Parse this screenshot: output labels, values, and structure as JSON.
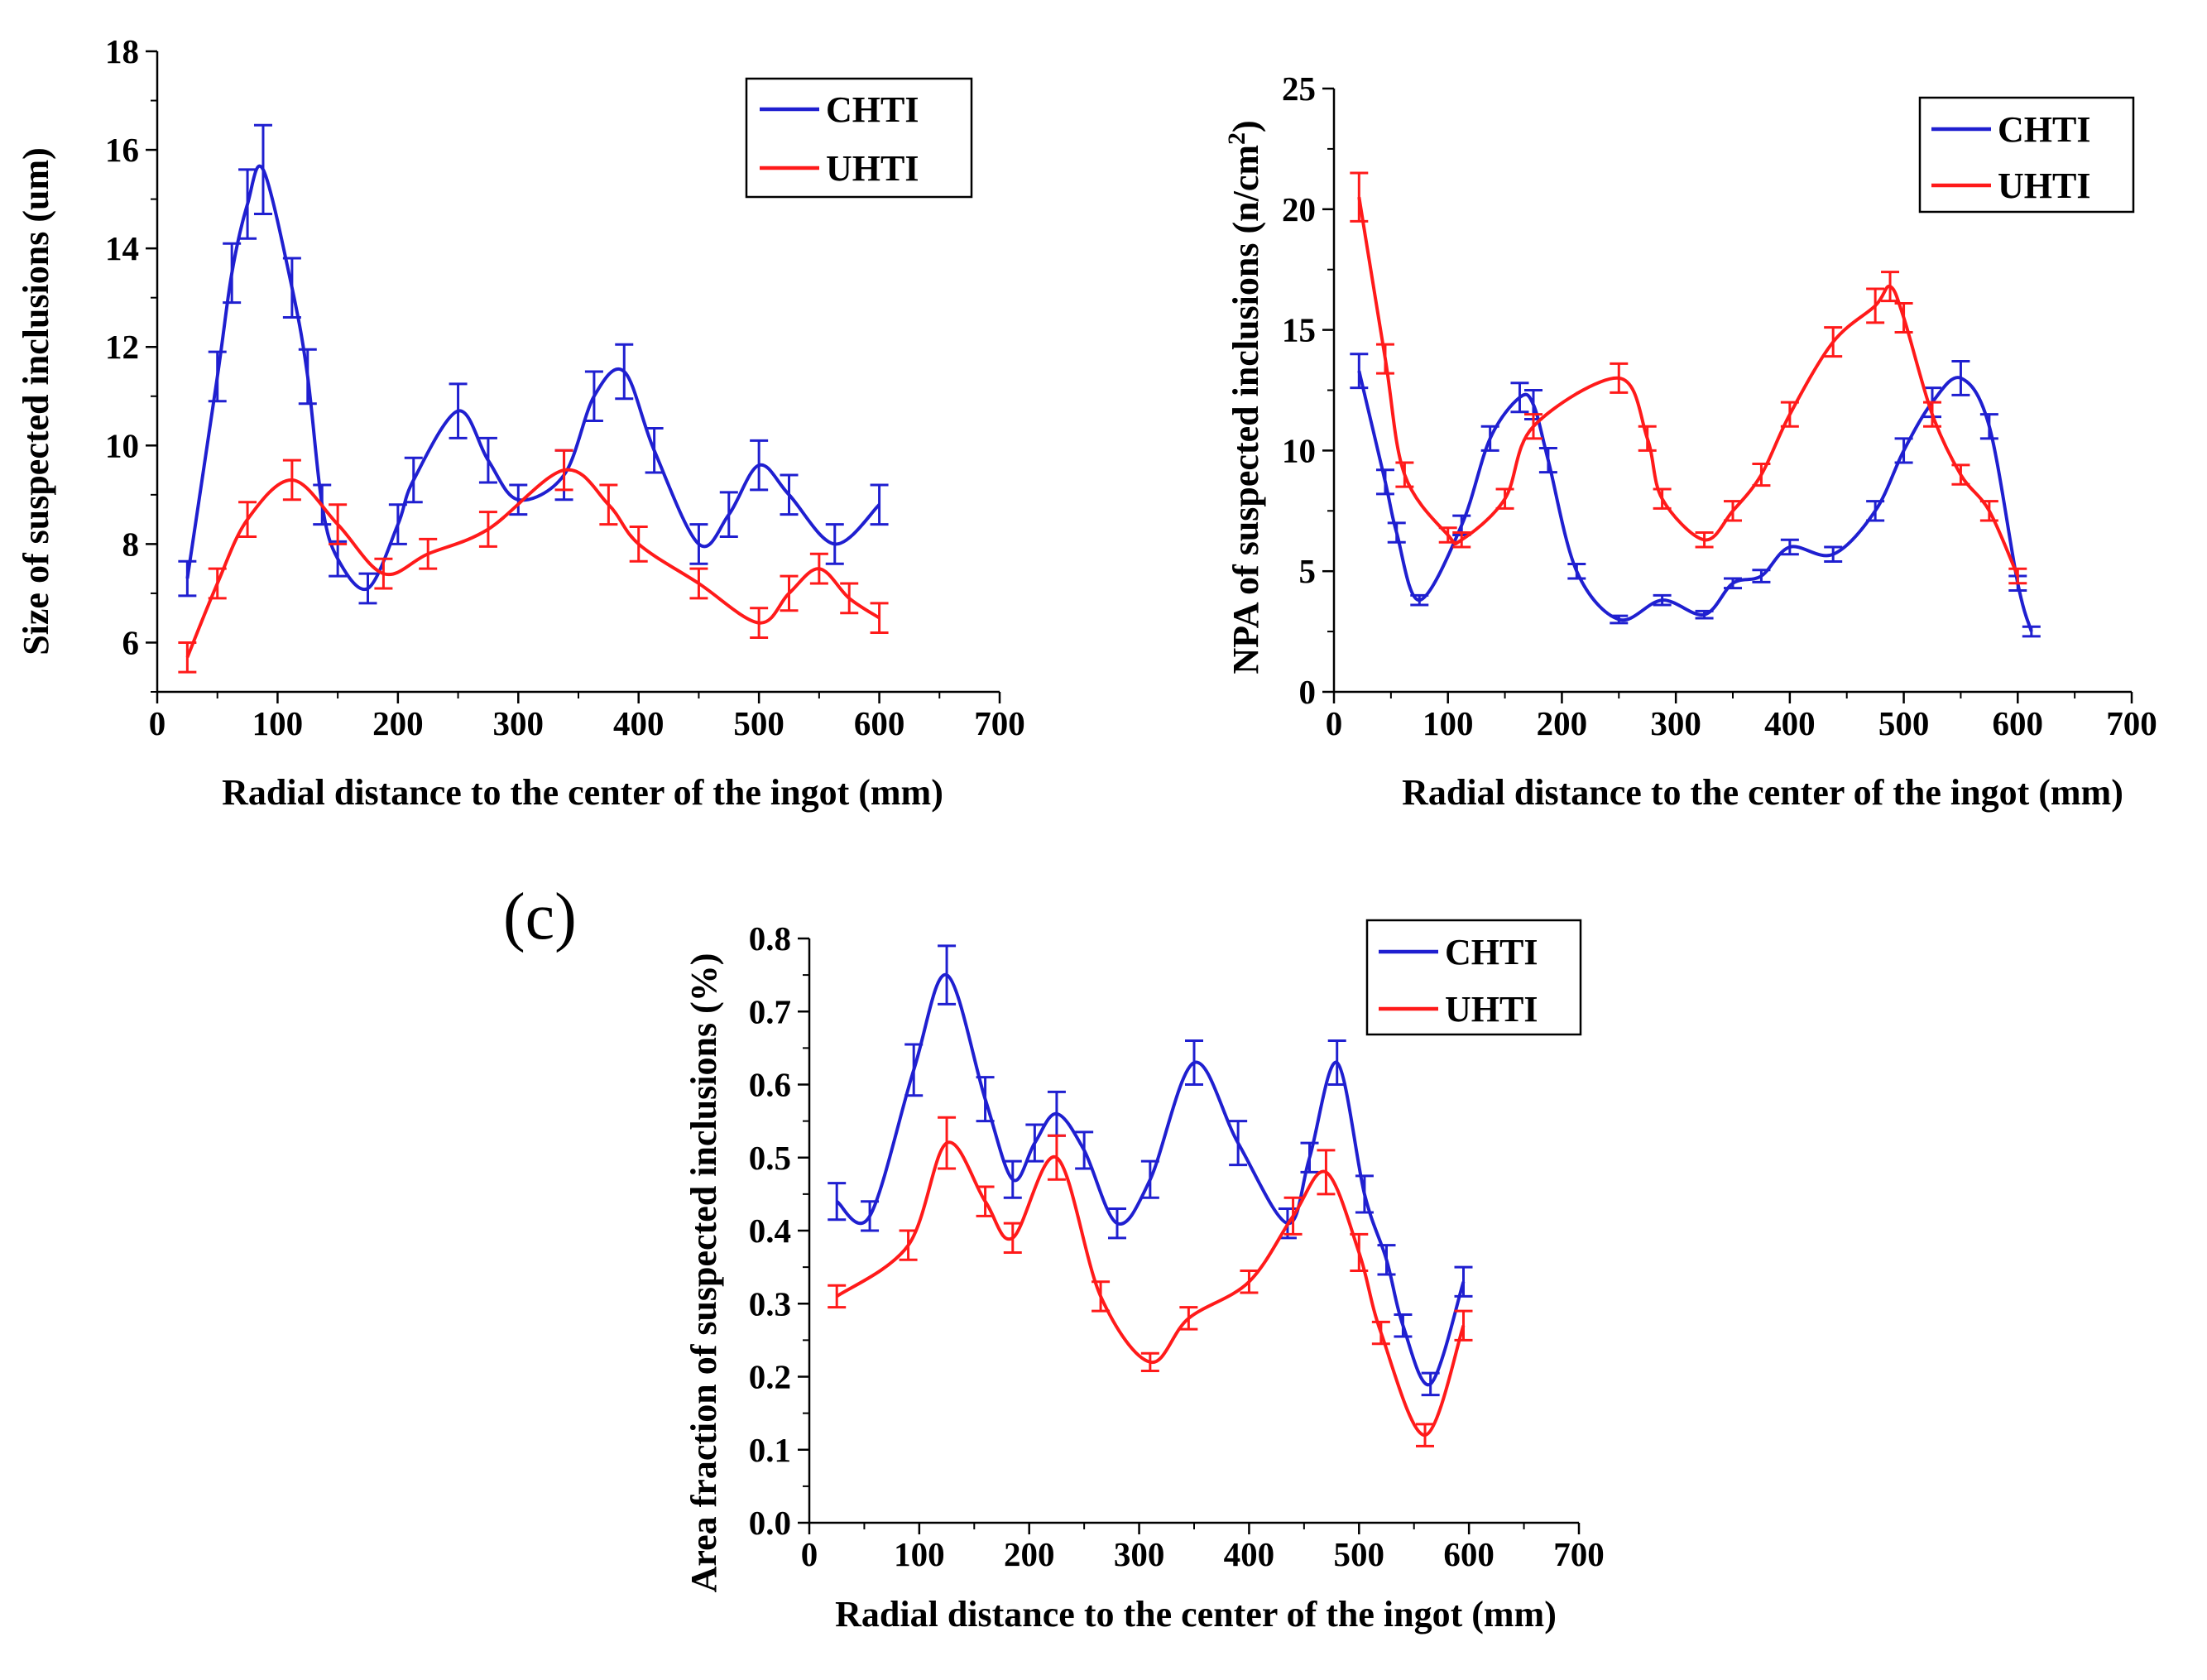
{
  "colors": {
    "CHTI": "#1f1fd0",
    "UHTI": "#ff1a1a",
    "axis": "#000000"
  },
  "panels": [
    {
      "id": "a",
      "label": "",
      "ylabel": "Size of  suspected inclusions (um)",
      "ylabel_superscript": "",
      "ylabel_suffix": "",
      "xlabel": "Radial distance to the center of the ingot (mm)",
      "xlim": [
        0,
        700
      ],
      "ylim": [
        5,
        18
      ],
      "xticks": [
        "0",
        "100",
        "200",
        "300",
        "400",
        "500",
        "600",
        "700"
      ],
      "xtick_values": [
        0,
        100,
        200,
        300,
        400,
        500,
        600,
        700
      ],
      "yticks": [
        "6",
        "8",
        "10",
        "12",
        "14",
        "16",
        "18"
      ],
      "ytick_values": [
        6,
        8,
        10,
        12,
        14,
        16,
        18
      ],
      "yminor": [
        5,
        7,
        9,
        11,
        13,
        15,
        17
      ],
      "legend": [
        "CHTI",
        "UHTI"
      ]
    },
    {
      "id": "b",
      "label": "",
      "ylabel": "NPA of suspected inclusions (n/cm",
      "ylabel_superscript": "2",
      "ylabel_suffix": ")",
      "xlabel": "Radial distance to the center of the ingot (mm)",
      "xlim": [
        0,
        700
      ],
      "ylim": [
        0,
        25
      ],
      "xticks": [
        "0",
        "100",
        "200",
        "300",
        "400",
        "500",
        "600",
        "700"
      ],
      "xtick_values": [
        0,
        100,
        200,
        300,
        400,
        500,
        600,
        700
      ],
      "yticks": [
        "0",
        "5",
        "10",
        "15",
        "20",
        "25"
      ],
      "ytick_values": [
        0,
        5,
        10,
        15,
        20,
        25
      ],
      "yminor": [
        2.5,
        7.5,
        12.5,
        17.5,
        22.5
      ],
      "legend": [
        "CHTI",
        "UHTI"
      ]
    },
    {
      "id": "c",
      "label": "(c)",
      "ylabel": "Area fraction of suspected inclusions (%)",
      "ylabel_superscript": "",
      "ylabel_suffix": "",
      "xlabel": "Radial distance to the center of the ingot (mm)",
      "xlim": [
        0,
        700
      ],
      "ylim": [
        0,
        0.8
      ],
      "xticks": [
        "0",
        "100",
        "200",
        "300",
        "400",
        "500",
        "600",
        "700"
      ],
      "xtick_values": [
        0,
        100,
        200,
        300,
        400,
        500,
        600,
        700
      ],
      "yticks": [
        "0.0",
        "0.1",
        "0.2",
        "0.3",
        "0.4",
        "0.5",
        "0.6",
        "0.7",
        "0.8"
      ],
      "ytick_values": [
        0,
        0.1,
        0.2,
        0.3,
        0.4,
        0.5,
        0.6,
        0.7,
        0.8
      ],
      "yminor": [
        0.05,
        0.15,
        0.25,
        0.35,
        0.45,
        0.55,
        0.65,
        0.75
      ],
      "legend": [
        "CHTI",
        "UHTI"
      ]
    }
  ],
  "chart_data": [
    {
      "type": "line",
      "ylabel": "Size of  suspected inclusions (um)",
      "xlabel": "Radial distance to the center of the ingot (mm)",
      "xlim": [
        0,
        700
      ],
      "ylim": [
        5,
        18
      ],
      "legend_position": "top-right",
      "series": [
        {
          "name": "CHTI",
          "x": [
            25,
            50,
            62,
            75,
            88,
            112,
            125,
            137,
            150,
            175,
            200,
            213,
            250,
            275,
            300,
            338,
            363,
            388,
            413,
            450,
            475,
            500,
            525,
            563,
            600
          ],
          "y": [
            7.3,
            11.4,
            13.5,
            14.9,
            15.6,
            13.2,
            11.4,
            8.8,
            7.7,
            7.1,
            8.4,
            9.3,
            10.7,
            9.7,
            8.9,
            9.4,
            11.0,
            11.5,
            9.9,
            8.0,
            8.6,
            9.6,
            9.0,
            8.0,
            8.8
          ],
          "err": [
            0.35,
            0.5,
            0.6,
            0.7,
            0.9,
            0.6,
            0.55,
            0.4,
            0.35,
            0.3,
            0.4,
            0.45,
            0.55,
            0.45,
            0.3,
            0.5,
            0.5,
            0.55,
            0.45,
            0.4,
            0.45,
            0.5,
            0.4,
            0.4,
            0.4
          ]
        },
        {
          "name": "UHTI",
          "x": [
            25,
            50,
            75,
            112,
            150,
            188,
            225,
            275,
            338,
            375,
            400,
            450,
            500,
            525,
            550,
            575,
            600
          ],
          "y": [
            5.7,
            7.2,
            8.5,
            9.3,
            8.4,
            7.4,
            7.8,
            8.3,
            9.5,
            8.8,
            8.0,
            7.2,
            6.4,
            7.0,
            7.5,
            6.9,
            6.5
          ],
          "err": [
            0.3,
            0.3,
            0.35,
            0.4,
            0.4,
            0.3,
            0.3,
            0.35,
            0.4,
            0.4,
            0.35,
            0.3,
            0.3,
            0.35,
            0.3,
            0.3,
            0.3
          ]
        }
      ]
    },
    {
      "type": "line",
      "ylabel": "NPA of suspected inclusions (n/cm2)",
      "xlabel": "Radial distance to the center of the ingot (mm)",
      "xlim": [
        0,
        700
      ],
      "ylim": [
        0,
        25
      ],
      "legend_position": "top-right",
      "series": [
        {
          "name": "CHTI",
          "x": [
            22,
            45,
            55,
            75,
            112,
            137,
            163,
            175,
            188,
            213,
            250,
            288,
            325,
            350,
            375,
            400,
            438,
            475,
            500,
            525,
            550,
            575,
            600,
            612
          ],
          "y": [
            13.3,
            8.7,
            6.6,
            3.8,
            6.9,
            10.5,
            12.2,
            11.9,
            9.6,
            5.0,
            3.0,
            3.8,
            3.2,
            4.5,
            4.8,
            6.0,
            5.7,
            7.5,
            10.0,
            12.0,
            13.0,
            11.0,
            4.5,
            2.5
          ],
          "err": [
            0.7,
            0.5,
            0.4,
            0.2,
            0.4,
            0.5,
            0.6,
            0.6,
            0.5,
            0.3,
            0.15,
            0.2,
            0.15,
            0.2,
            0.25,
            0.3,
            0.3,
            0.4,
            0.5,
            0.6,
            0.7,
            0.5,
            0.3,
            0.2
          ]
        },
        {
          "name": "UHTI",
          "x": [
            22,
            45,
            62,
            100,
            112,
            150,
            175,
            250,
            275,
            288,
            325,
            350,
            375,
            400,
            438,
            475,
            488,
            500,
            525,
            550,
            575,
            600
          ],
          "y": [
            20.5,
            13.8,
            9.0,
            6.5,
            6.3,
            8.0,
            11.0,
            13.0,
            10.5,
            8.0,
            6.3,
            7.5,
            9.0,
            11.5,
            14.5,
            16.0,
            16.8,
            15.5,
            11.5,
            9.0,
            7.5,
            4.8
          ],
          "err": [
            1.0,
            0.6,
            0.5,
            0.3,
            0.3,
            0.4,
            0.5,
            0.6,
            0.5,
            0.4,
            0.3,
            0.4,
            0.45,
            0.5,
            0.6,
            0.7,
            0.6,
            0.6,
            0.5,
            0.4,
            0.4,
            0.3
          ]
        }
      ]
    },
    {
      "type": "line",
      "ylabel": "Area fraction of suspected inclusions (%)",
      "xlabel": "Radial distance to the center of the ingot (mm)",
      "xlim": [
        0,
        700
      ],
      "ylim": [
        0,
        0.8
      ],
      "legend_position": "top-right",
      "series": [
        {
          "name": "CHTI",
          "x": [
            25,
            55,
            95,
            125,
            160,
            185,
            205,
            225,
            250,
            280,
            310,
            350,
            390,
            435,
            455,
            480,
            505,
            525,
            540,
            565,
            595
          ],
          "y": [
            0.44,
            0.42,
            0.62,
            0.75,
            0.58,
            0.47,
            0.52,
            0.56,
            0.51,
            0.41,
            0.47,
            0.63,
            0.52,
            0.41,
            0.5,
            0.63,
            0.45,
            0.36,
            0.27,
            0.19,
            0.33
          ],
          "err": [
            0.025,
            0.02,
            0.035,
            0.04,
            0.03,
            0.025,
            0.025,
            0.03,
            0.025,
            0.02,
            0.025,
            0.03,
            0.03,
            0.02,
            0.02,
            0.03,
            0.025,
            0.02,
            0.015,
            0.015,
            0.02
          ]
        },
        {
          "name": "UHTI",
          "x": [
            25,
            90,
            125,
            160,
            185,
            225,
            265,
            310,
            345,
            400,
            440,
            470,
            500,
            520,
            560,
            595
          ],
          "y": [
            0.31,
            0.38,
            0.52,
            0.44,
            0.39,
            0.5,
            0.31,
            0.22,
            0.28,
            0.33,
            0.42,
            0.48,
            0.37,
            0.26,
            0.12,
            0.27
          ],
          "err": [
            0.015,
            0.02,
            0.035,
            0.02,
            0.02,
            0.03,
            0.02,
            0.012,
            0.015,
            0.015,
            0.025,
            0.03,
            0.025,
            0.015,
            0.015,
            0.02
          ]
        }
      ]
    }
  ]
}
